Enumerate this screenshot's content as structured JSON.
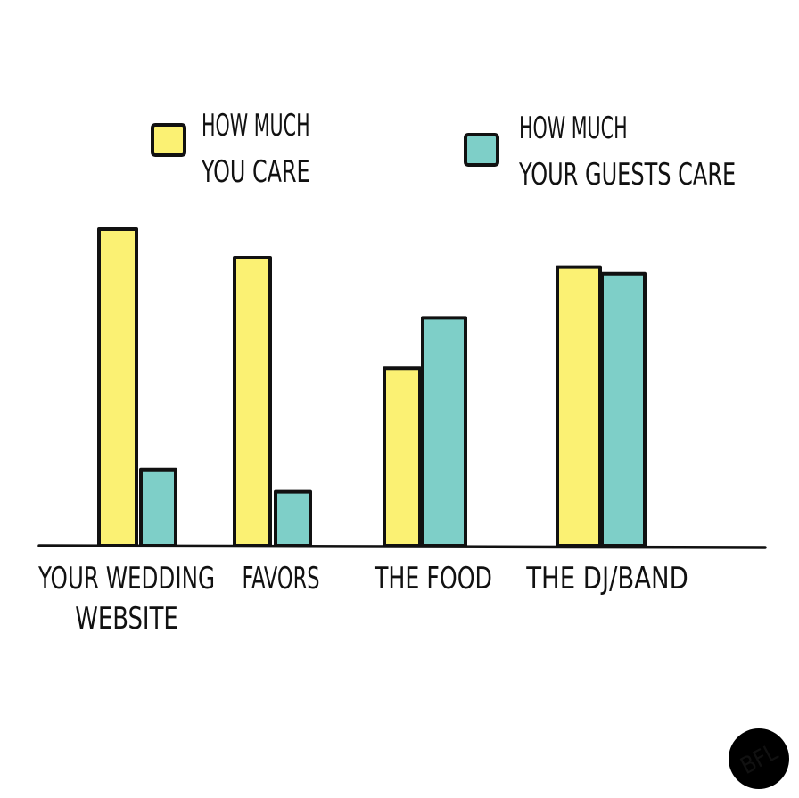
{
  "colors": {
    "you": "#fbf173",
    "guests": "#7ecfc8",
    "ink": "#111111",
    "logo_bg": "#000000",
    "logo_fg": "#ffffff"
  },
  "legend": [
    {
      "lines": [
        "HOW MUCH",
        "YOU CARE"
      ],
      "color": "#fbf173"
    },
    {
      "lines": [
        "HOW MUCH",
        "YOUR GUESTS CARE"
      ],
      "color": "#7ecfc8"
    }
  ],
  "logo": "BFL",
  "chart_data": {
    "type": "bar",
    "title": "",
    "xlabel": "",
    "ylabel": "",
    "ylim": [
      0,
      100
    ],
    "grid": false,
    "legend_position": "top",
    "categories": [
      {
        "lines": [
          "YOUR WEDDING",
          "WEBSITE"
        ]
      },
      {
        "lines": [
          "FAVORS"
        ]
      },
      {
        "lines": [
          "THE FOOD"
        ]
      },
      {
        "lines": [
          "THE DJ/BAND"
        ]
      }
    ],
    "series": [
      {
        "name": "HOW MUCH YOU CARE",
        "values": [
          100,
          91,
          56,
          88
        ]
      },
      {
        "name": "HOW MUCH YOUR GUESTS CARE",
        "values": [
          24,
          17,
          72,
          86
        ]
      }
    ]
  }
}
